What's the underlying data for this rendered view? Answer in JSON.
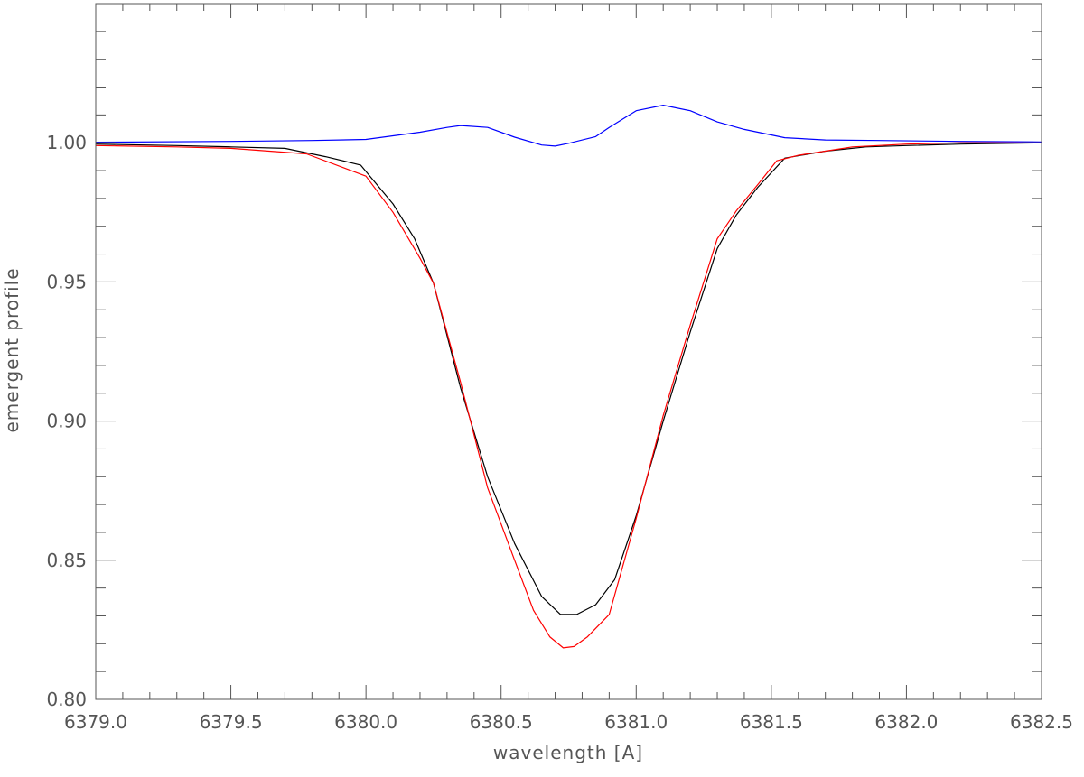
{
  "chart_data": {
    "type": "line",
    "title": "",
    "xlabel": "wavelength [A]",
    "ylabel": "emergent profile",
    "xlim": [
      6379.0,
      6382.5
    ],
    "ylim": [
      0.8,
      1.05
    ],
    "x_ticks": [
      6379.0,
      6379.5,
      6380.0,
      6380.5,
      6381.0,
      6381.5,
      6382.0,
      6382.5
    ],
    "x_tick_labels": [
      "6379.0",
      "6379.5",
      "6380.0",
      "6380.5",
      "6381.0",
      "6381.5",
      "6382.0",
      "6382.5"
    ],
    "y_ticks": [
      0.8,
      0.85,
      0.9,
      0.95,
      1.0
    ],
    "y_tick_labels": [
      "0.80",
      "0.85",
      "0.90",
      "0.95",
      "1.00"
    ],
    "grid": false,
    "legend": "none",
    "series": [
      {
        "color": "#000000",
        "x": [
          6379.0,
          6379.3,
          6379.5,
          6379.7,
          6379.85,
          6379.98,
          6380.1,
          6380.18,
          6380.25,
          6380.35,
          6380.45,
          6380.55,
          6380.65,
          6380.72,
          6380.78,
          6380.85,
          6380.92,
          6381.0,
          6381.1,
          6381.2,
          6381.3,
          6381.37,
          6381.45,
          6381.55,
          6381.7,
          6381.85,
          6382.0,
          6382.2,
          6382.5
        ],
        "y": [
          0.9995,
          0.999,
          0.9985,
          0.998,
          0.995,
          0.992,
          0.978,
          0.9655,
          0.9495,
          0.912,
          0.88,
          0.856,
          0.837,
          0.8305,
          0.8305,
          0.834,
          0.843,
          0.866,
          0.9,
          0.932,
          0.962,
          0.974,
          0.984,
          0.9945,
          0.997,
          0.9985,
          0.999,
          0.9995,
          1.0
        ]
      },
      {
        "color": "#ff0000",
        "x": [
          6379.0,
          6379.3,
          6379.5,
          6379.78,
          6380.0,
          6380.1,
          6380.2,
          6380.25,
          6380.35,
          6380.45,
          6380.55,
          6380.62,
          6380.68,
          6380.73,
          6380.77,
          6380.82,
          6380.9,
          6381.0,
          6381.1,
          6381.2,
          6381.3,
          6381.37,
          6381.45,
          6381.52,
          6381.6,
          6381.8,
          6382.0,
          6382.2,
          6382.5
        ],
        "y": [
          0.999,
          0.9985,
          0.998,
          0.996,
          0.988,
          0.975,
          0.9585,
          0.9495,
          0.914,
          0.876,
          0.85,
          0.832,
          0.8225,
          0.8185,
          0.819,
          0.8225,
          0.8305,
          0.865,
          0.902,
          0.9345,
          0.9655,
          0.9755,
          0.985,
          0.9935,
          0.9955,
          0.9985,
          0.9995,
          1.0,
          1.0
        ]
      },
      {
        "color": "#0000ff",
        "x": [
          6379.0,
          6379.5,
          6379.8,
          6380.0,
          6380.1,
          6380.2,
          6380.3,
          6380.35,
          6380.45,
          6380.55,
          6380.65,
          6380.7,
          6380.75,
          6380.85,
          6380.9,
          6381.0,
          6381.1,
          6381.2,
          6381.3,
          6381.4,
          6381.55,
          6381.7,
          6381.9,
          6382.2,
          6382.5
        ],
        "y": [
          1.0002,
          1.0005,
          1.0008,
          1.0012,
          1.0025,
          1.0038,
          1.0055,
          1.0062,
          1.0055,
          1.002,
          0.9992,
          0.9988,
          0.9998,
          1.0022,
          1.0055,
          1.0115,
          1.0135,
          1.0115,
          1.0075,
          1.0048,
          1.0018,
          1.001,
          1.0008,
          1.0005,
          1.0003
        ]
      }
    ]
  }
}
